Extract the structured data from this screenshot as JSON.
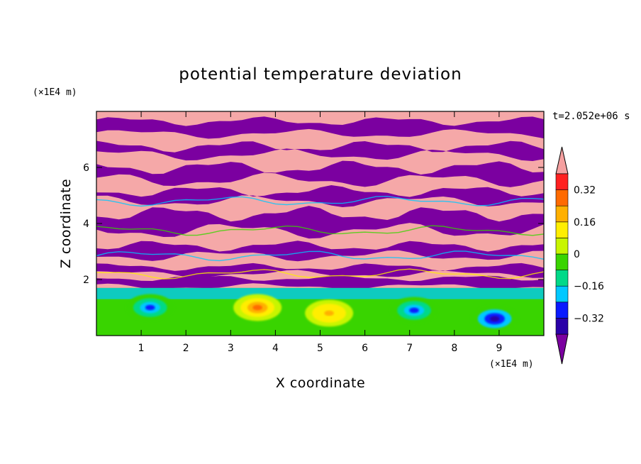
{
  "chart_data": {
    "type": "heatmap",
    "title": "potential temperature deviation",
    "xlabel": "X coordinate",
    "ylabel": "Z coordinate",
    "x_unit": "(×1E4 m)",
    "z_unit": "(×1E4 m)",
    "time_label": "t=2.052e+06 s",
    "xlim": [
      0,
      10
    ],
    "ylim": [
      0,
      8
    ],
    "x_ticks": [
      "1",
      "2",
      "3",
      "4",
      "5",
      "6",
      "7",
      "8",
      "9"
    ],
    "x_tick_values": [
      1,
      2,
      3,
      4,
      5,
      6,
      7,
      8,
      9
    ],
    "y_ticks": [
      "2",
      "4",
      "6"
    ],
    "y_tick_values": [
      2,
      4,
      6
    ],
    "colorbar": {
      "levels": [
        -0.4,
        -0.32,
        -0.24,
        -0.16,
        -0.08,
        0,
        0.08,
        0.16,
        0.24,
        0.32,
        0.4
      ],
      "colors": [
        "#7b00a0",
        "#2a00a8",
        "#0a1aff",
        "#00c8ff",
        "#00d988",
        "#39d400",
        "#c8f500",
        "#ffee00",
        "#ffb000",
        "#ff6a00",
        "#ff2020",
        "#f5a0a0"
      ],
      "tick_labels": [
        "0.32",
        "0.16",
        "0",
        "−0.16",
        "−0.32"
      ],
      "tick_values": [
        0.32,
        0.16,
        0,
        -0.16,
        -0.32
      ],
      "extend": "both"
    },
    "upper_layer": {
      "description": "alternating warm and cold layers above z≈2",
      "colors": [
        "#f5a8a8",
        "#7b00a0"
      ]
    },
    "lower_layer_features": [
      {
        "x": 1.2,
        "z": 1.0,
        "value": -0.3
      },
      {
        "x": 3.6,
        "z": 1.0,
        "value": 0.3
      },
      {
        "x": 5.2,
        "z": 0.8,
        "value": 0.2
      },
      {
        "x": 7.1,
        "z": 0.9,
        "value": -0.25
      },
      {
        "x": 8.9,
        "z": 0.6,
        "value": -0.35
      }
    ]
  }
}
